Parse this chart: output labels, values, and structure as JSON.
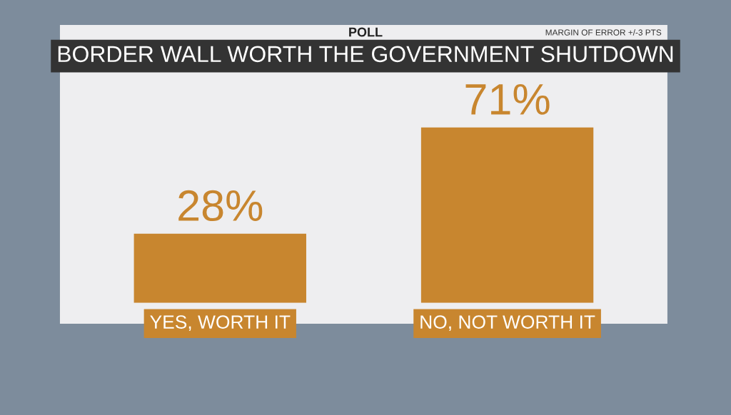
{
  "chart_data": {
    "type": "bar",
    "title": "BORDER WALL WORTH THE GOVERNMENT SHUTDOWN",
    "subtitle": "POLL",
    "annotations": [
      "MARGIN OF ERROR +/-3 PTS"
    ],
    "categories": [
      "YES, WORTH IT",
      "NO, NOT WORTH IT"
    ],
    "values": [
      28,
      71
    ],
    "value_labels": [
      "28%",
      "71%"
    ],
    "color": "#c8862f",
    "grid": false,
    "legend": false
  }
}
